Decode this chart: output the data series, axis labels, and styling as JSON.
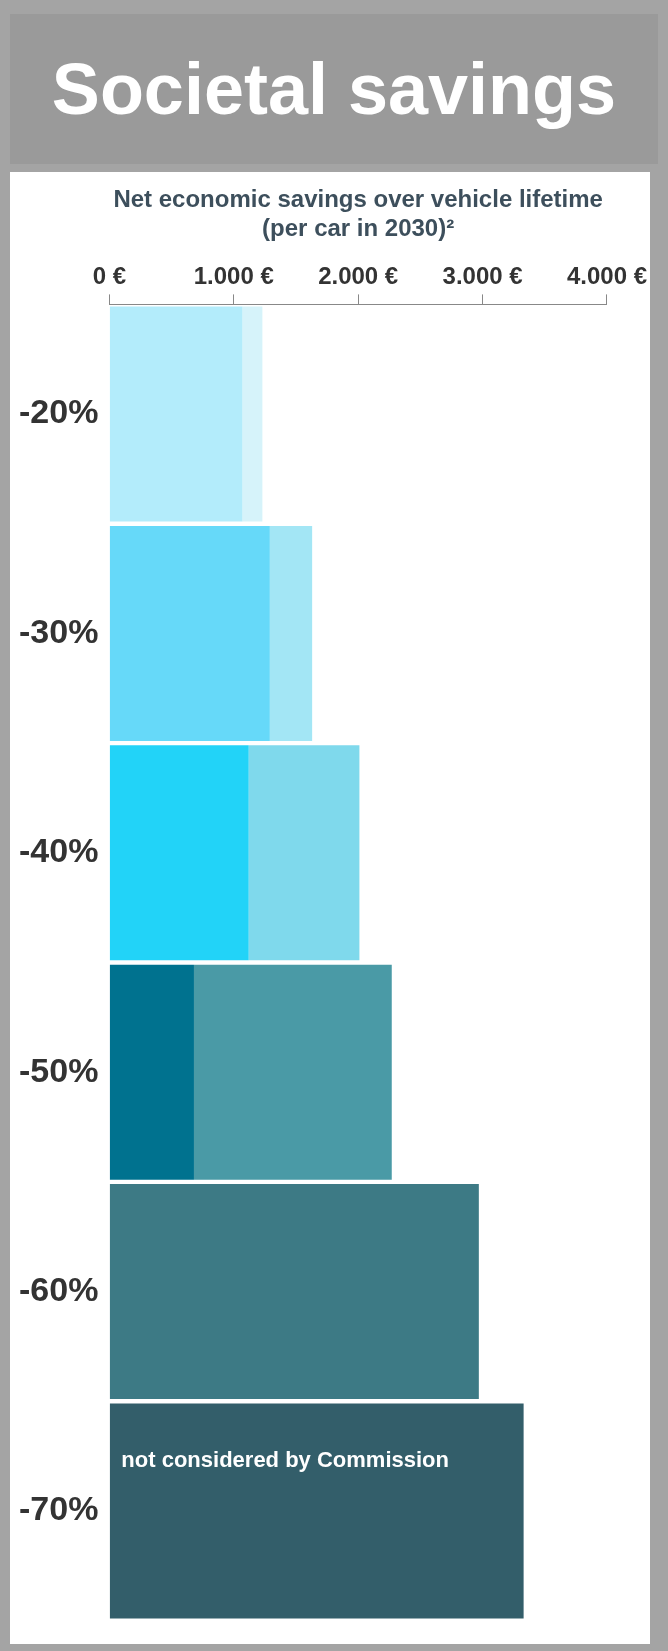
{
  "chart_data": {
    "type": "bar",
    "title": "Societal savings",
    "xlabel": "Net economic savings over vehicle lifetime (per car in 2030)²",
    "orientation": "horizontal",
    "categories": [
      "-20%",
      "-30%",
      "-40%",
      "-50%",
      "-60%",
      "-70%"
    ],
    "stacked": true,
    "series": [
      {
        "colors": [
          "#b3ecfb",
          "#66d9f9",
          "#22d3f8",
          "#00728f",
          "#2f6a75",
          "#2a5a66"
        ],
        "values": [
          1070,
          1290,
          1120,
          680,
          0,
          0
        ]
      },
      {
        "colors": [
          "#d6f3fa",
          "#a3e6f5",
          "#7fd9ec",
          "#4a9aa6",
          "#3d7a85",
          "#335e6a"
        ],
        "values": [
          160,
          340,
          890,
          1590,
          2970,
          3330
        ]
      }
    ],
    "xlim": [
      0,
      4000
    ],
    "xticks": [
      {
        "value": 0,
        "label": "0 €"
      },
      {
        "value": 1000,
        "label": "1.000 €"
      },
      {
        "value": 2000,
        "label": "2.000 €"
      },
      {
        "value": 3000,
        "label": "3.000 €"
      },
      {
        "value": 4000,
        "label": "4.000 €"
      }
    ],
    "annotations": [
      "not considered by Commission"
    ],
    "grid": false,
    "legend": false
  }
}
